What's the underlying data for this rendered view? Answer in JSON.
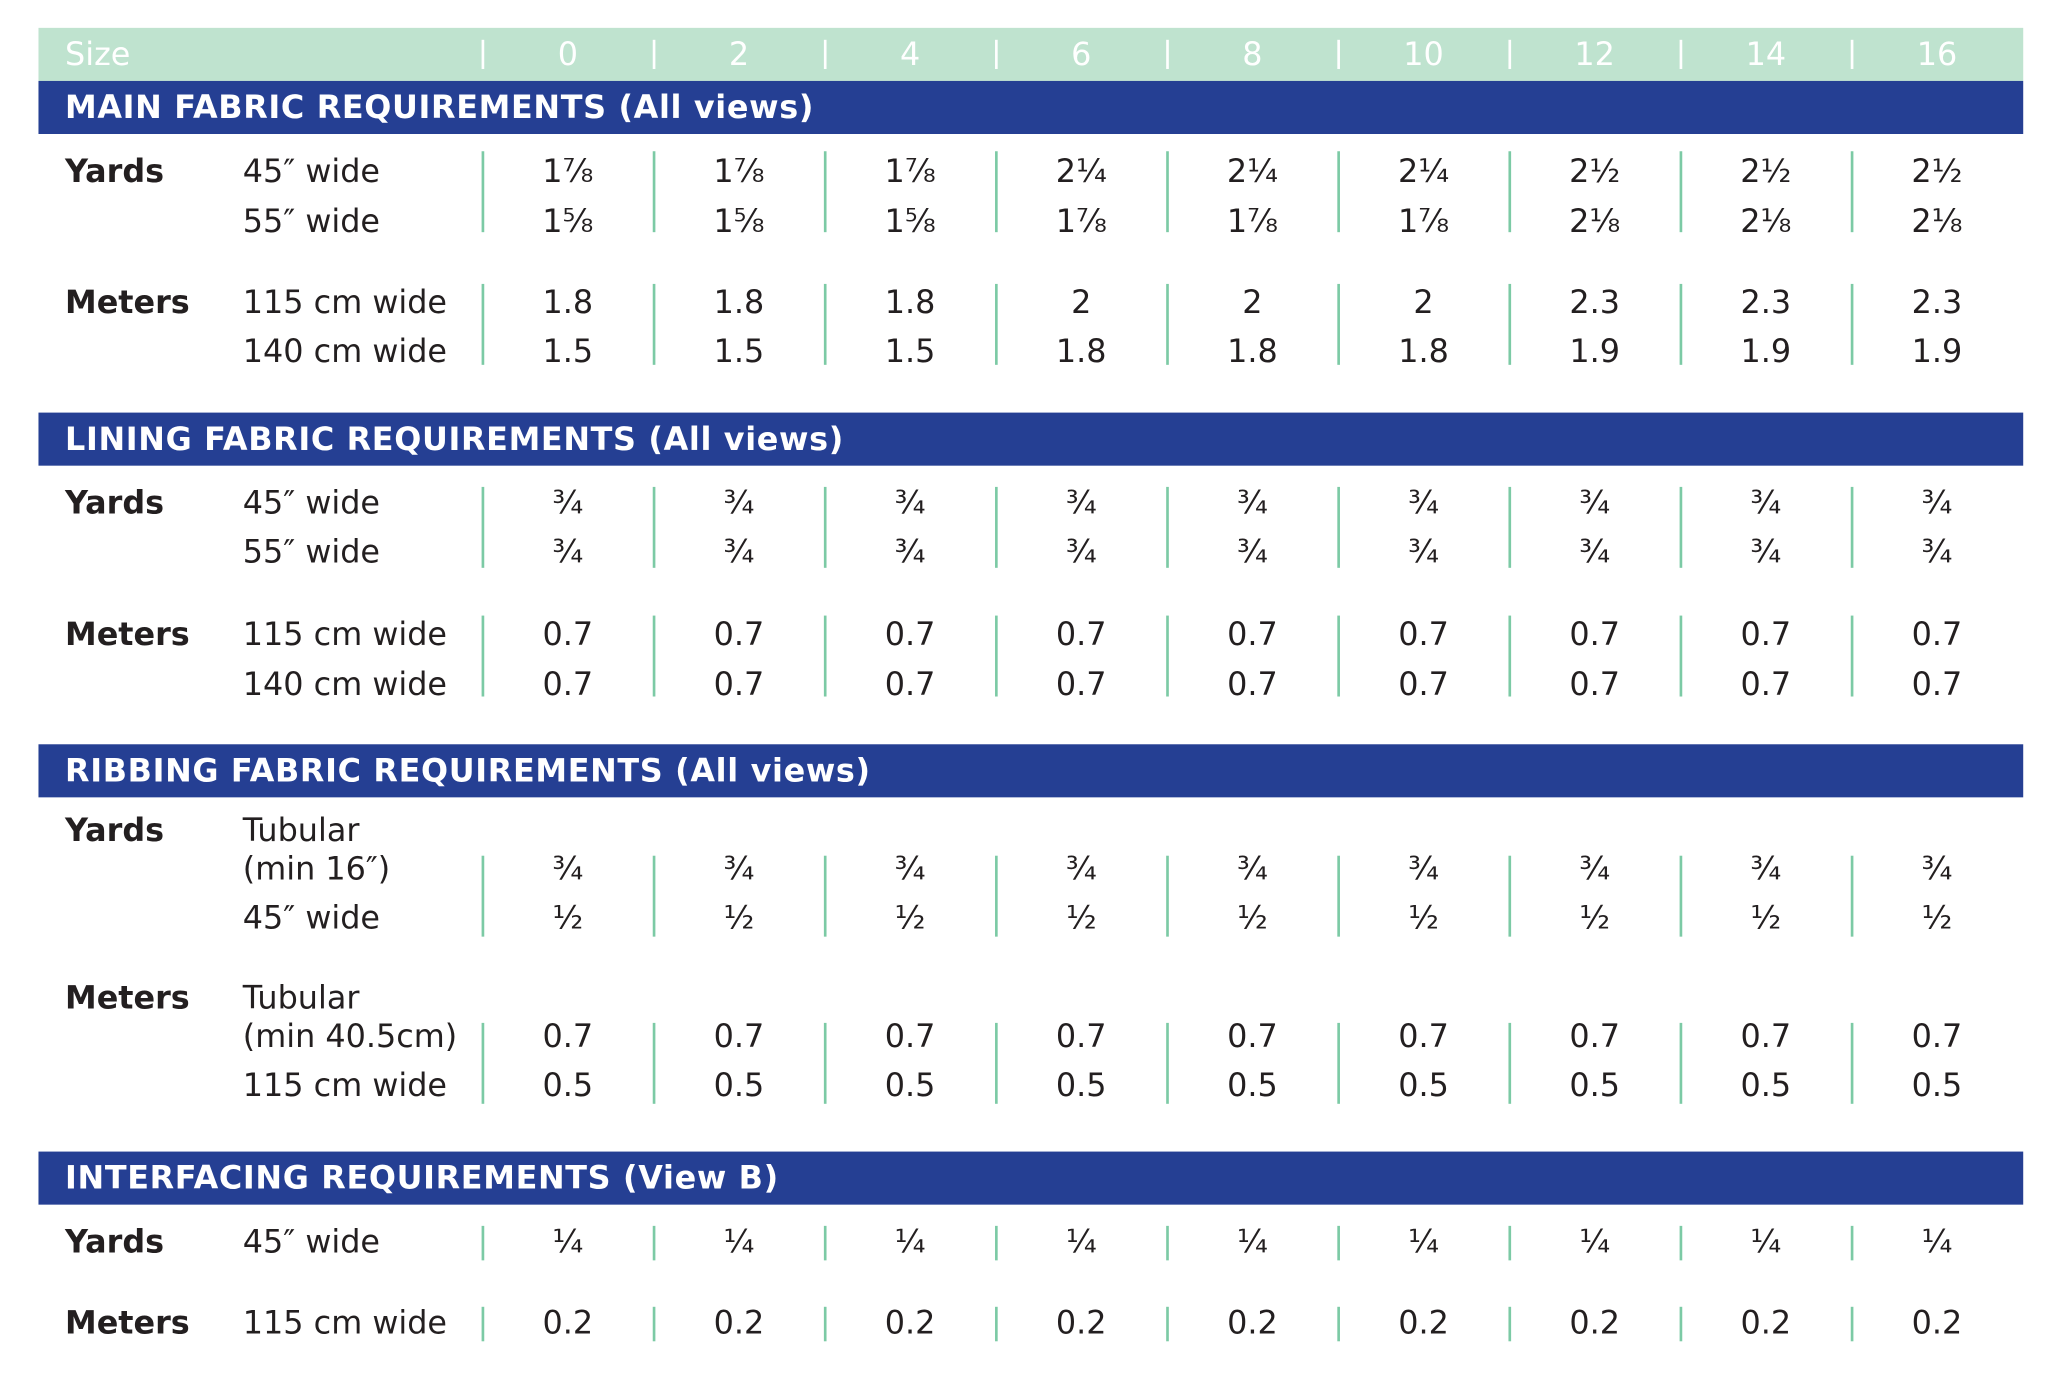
{
  "header": {
    "size_label": "Size",
    "sizes": [
      "0",
      "2",
      "4",
      "6",
      "8",
      "10",
      "12",
      "14",
      "16"
    ]
  },
  "sections": [
    {
      "title": "MAIN FABRIC REQUIREMENTS (All views)",
      "groups": [
        {
          "label": "Yards",
          "rows": [
            {
              "desc": "45″ wide",
              "values": [
                "1⅞",
                "1⅞",
                "1⅞",
                "2¼",
                "2¼",
                "2¼",
                "2½",
                "2½",
                "2½"
              ]
            },
            {
              "desc": "55″ wide",
              "values": [
                "1⅝",
                "1⅝",
                "1⅝",
                "1⅞",
                "1⅞",
                "1⅞",
                "2⅛",
                "2⅛",
                "2⅛"
              ]
            }
          ]
        },
        {
          "label": "Meters",
          "rows": [
            {
              "desc": "115 cm wide",
              "values": [
                "1.8",
                "1.8",
                "1.8",
                "2",
                "2",
                "2",
                "2.3",
                "2.3",
                "2.3"
              ]
            },
            {
              "desc": "140 cm wide",
              "values": [
                "1.5",
                "1.5",
                "1.5",
                "1.8",
                "1.8",
                "1.8",
                "1.9",
                "1.9",
                "1.9"
              ]
            }
          ]
        }
      ]
    },
    {
      "title": "LINING FABRIC REQUIREMENTS (All views)",
      "groups": [
        {
          "label": "Yards",
          "rows": [
            {
              "desc": "45″ wide",
              "values": [
                "¾",
                "¾",
                "¾",
                "¾",
                "¾",
                "¾",
                "¾",
                "¾",
                "¾"
              ]
            },
            {
              "desc": "55″ wide",
              "values": [
                "¾",
                "¾",
                "¾",
                "¾",
                "¾",
                "¾",
                "¾",
                "¾",
                "¾"
              ]
            }
          ]
        },
        {
          "label": "Meters",
          "rows": [
            {
              "desc": "115 cm wide",
              "values": [
                "0.7",
                "0.7",
                "0.7",
                "0.7",
                "0.7",
                "0.7",
                "0.7",
                "0.7",
                "0.7"
              ]
            },
            {
              "desc": "140 cm wide",
              "values": [
                "0.7",
                "0.7",
                "0.7",
                "0.7",
                "0.7",
                "0.7",
                "0.7",
                "0.7",
                "0.7"
              ]
            }
          ]
        }
      ]
    },
    {
      "title": "RIBBING FABRIC REQUIREMENTS (All views)",
      "groups": [
        {
          "label": "Yards",
          "rows": [
            {
              "desc": "Tubular"
            },
            {
              "desc": "(min 16″)",
              "values": [
                "¾",
                "¾",
                "¾",
                "¾",
                "¾",
                "¾",
                "¾",
                "¾",
                "¾"
              ]
            },
            {
              "desc": "45″ wide",
              "values": [
                "½",
                "½",
                "½",
                "½",
                "½",
                "½",
                "½",
                "½",
                "½"
              ]
            }
          ]
        },
        {
          "label": "Meters",
          "rows": [
            {
              "desc": "Tubular"
            },
            {
              "desc": "(min 40.5cm)",
              "values": [
                "0.7",
                "0.7",
                "0.7",
                "0.7",
                "0.7",
                "0.7",
                "0.7",
                "0.7",
                "0.7"
              ]
            },
            {
              "desc": "115 cm wide",
              "values": [
                "0.5",
                "0.5",
                "0.5",
                "0.5",
                "0.5",
                "0.5",
                "0.5",
                "0.5",
                "0.5"
              ]
            }
          ]
        }
      ]
    },
    {
      "title": "INTERFACING REQUIREMENTS (View B)",
      "groups": [
        {
          "label": "Yards",
          "rows": [
            {
              "desc": "45″ wide",
              "values": [
                "¼",
                "¼",
                "¼",
                "¼",
                "¼",
                "¼",
                "¼",
                "¼",
                "¼"
              ]
            }
          ]
        },
        {
          "label": "Meters",
          "rows": [
            {
              "desc": "115 cm wide",
              "values": [
                "0.2",
                "0.2",
                "0.2",
                "0.2",
                "0.2",
                "0.2",
                "0.2",
                "0.2",
                "0.2"
              ]
            }
          ]
        }
      ]
    }
  ]
}
